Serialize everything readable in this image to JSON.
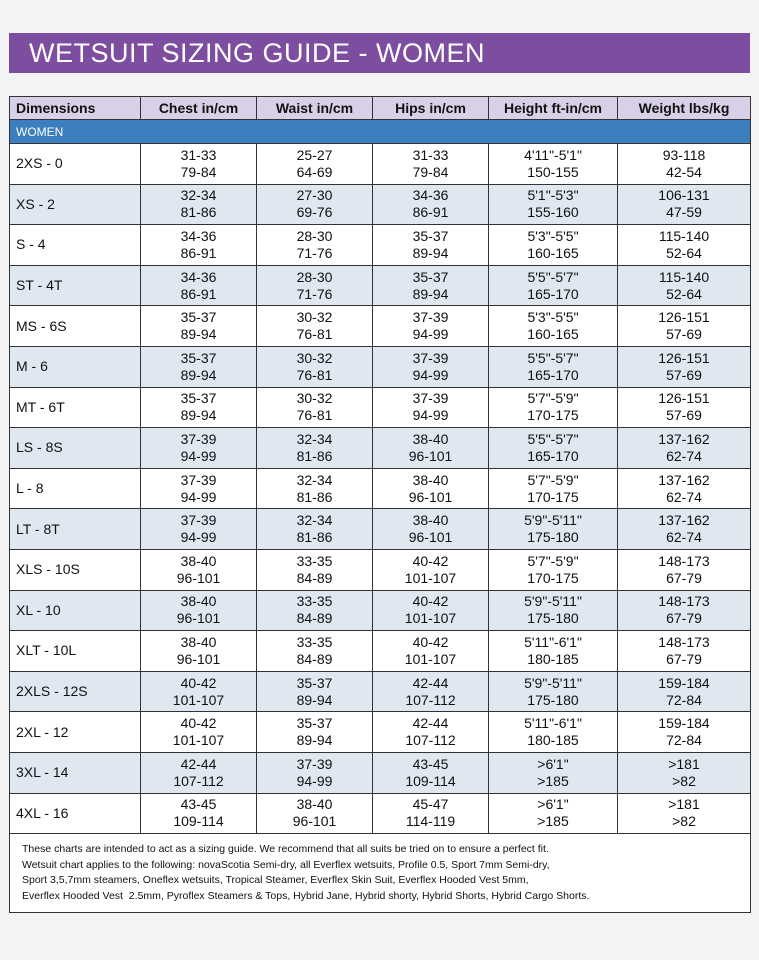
{
  "header": {
    "title": "WETSUIT SIZING GUIDE - WOMEN"
  },
  "table": {
    "columns": [
      "Dimensions",
      "Chest in/cm",
      "Waist in/cm",
      "Hips in/cm",
      "Height ft-in/cm",
      "Weight lbs/kg"
    ],
    "section": "WOMEN",
    "rows": [
      {
        "size": "2XS - 0",
        "cells": [
          [
            "31-33",
            "79-84"
          ],
          [
            "25-27",
            "64-69"
          ],
          [
            "31-33",
            "79-84"
          ],
          [
            "4'11\"-5'1\"",
            "150-155"
          ],
          [
            "93-118",
            "42-54"
          ]
        ]
      },
      {
        "size": "XS - 2",
        "cells": [
          [
            "32-34",
            "81-86"
          ],
          [
            "27-30",
            "69-76"
          ],
          [
            "34-36",
            "86-91"
          ],
          [
            "5'1\"-5'3\"",
            "155-160"
          ],
          [
            "106-131",
            "47-59"
          ]
        ]
      },
      {
        "size": "S - 4",
        "cells": [
          [
            "34-36",
            "86-91"
          ],
          [
            "28-30",
            "71-76"
          ],
          [
            "35-37",
            "89-94"
          ],
          [
            "5'3\"-5'5\"",
            "160-165"
          ],
          [
            "115-140",
            "52-64"
          ]
        ]
      },
      {
        "size": "ST - 4T",
        "cells": [
          [
            "34-36",
            "86-91"
          ],
          [
            "28-30",
            "71-76"
          ],
          [
            "35-37",
            "89-94"
          ],
          [
            "5'5\"-5'7\"",
            "165-170"
          ],
          [
            "115-140",
            "52-64"
          ]
        ]
      },
      {
        "size": "MS - 6S",
        "cells": [
          [
            "35-37",
            "89-94"
          ],
          [
            "30-32",
            "76-81"
          ],
          [
            "37-39",
            "94-99"
          ],
          [
            "5'3\"-5'5\"",
            "160-165"
          ],
          [
            "126-151",
            "57-69"
          ]
        ]
      },
      {
        "size": "M - 6",
        "cells": [
          [
            "35-37",
            "89-94"
          ],
          [
            "30-32",
            "76-81"
          ],
          [
            "37-39",
            "94-99"
          ],
          [
            "5'5\"-5'7\"",
            "165-170"
          ],
          [
            "126-151",
            "57-69"
          ]
        ]
      },
      {
        "size": "MT - 6T",
        "cells": [
          [
            "35-37",
            "89-94"
          ],
          [
            "30-32",
            "76-81"
          ],
          [
            "37-39",
            "94-99"
          ],
          [
            "5'7\"-5'9\"",
            "170-175"
          ],
          [
            "126-151",
            "57-69"
          ]
        ]
      },
      {
        "size": "LS - 8S",
        "cells": [
          [
            "37-39",
            "94-99"
          ],
          [
            "32-34",
            "81-86"
          ],
          [
            "38-40",
            "96-101"
          ],
          [
            "5'5\"-5'7\"",
            "165-170"
          ],
          [
            "137-162",
            "62-74"
          ]
        ]
      },
      {
        "size": "L - 8",
        "cells": [
          [
            "37-39",
            "94-99"
          ],
          [
            "32-34",
            "81-86"
          ],
          [
            "38-40",
            "96-101"
          ],
          [
            "5'7\"-5'9\"",
            "170-175"
          ],
          [
            "137-162",
            "62-74"
          ]
        ]
      },
      {
        "size": "LT - 8T",
        "cells": [
          [
            "37-39",
            "94-99"
          ],
          [
            "32-34",
            "81-86"
          ],
          [
            "38-40",
            "96-101"
          ],
          [
            "5'9\"-5'11\"",
            "175-180"
          ],
          [
            "137-162",
            "62-74"
          ]
        ]
      },
      {
        "size": "XLS - 10S",
        "cells": [
          [
            "38-40",
            "96-101"
          ],
          [
            "33-35",
            "84-89"
          ],
          [
            "40-42",
            "101-107"
          ],
          [
            "5'7\"-5'9\"",
            "170-175"
          ],
          [
            "148-173",
            "67-79"
          ]
        ]
      },
      {
        "size": "XL - 10",
        "cells": [
          [
            "38-40",
            "96-101"
          ],
          [
            "33-35",
            "84-89"
          ],
          [
            "40-42",
            "101-107"
          ],
          [
            "5'9\"-5'11\"",
            "175-180"
          ],
          [
            "148-173",
            "67-79"
          ]
        ]
      },
      {
        "size": "XLT - 10L",
        "cells": [
          [
            "38-40",
            "96-101"
          ],
          [
            "33-35",
            "84-89"
          ],
          [
            "40-42",
            "101-107"
          ],
          [
            "5'11\"-6'1\"",
            "180-185"
          ],
          [
            "148-173",
            "67-79"
          ]
        ]
      },
      {
        "size": "2XLS - 12S",
        "cells": [
          [
            "40-42",
            "101-107"
          ],
          [
            "35-37",
            "89-94"
          ],
          [
            "42-44",
            "107-112"
          ],
          [
            "5'9\"-5'11\"",
            "175-180"
          ],
          [
            "159-184",
            "72-84"
          ]
        ]
      },
      {
        "size": "2XL - 12",
        "cells": [
          [
            "40-42",
            "101-107"
          ],
          [
            "35-37",
            "89-94"
          ],
          [
            "42-44",
            "107-112"
          ],
          [
            "5'11\"-6'1\"",
            "180-185"
          ],
          [
            "159-184",
            "72-84"
          ]
        ]
      },
      {
        "size": "3XL - 14",
        "cells": [
          [
            "42-44",
            "107-112"
          ],
          [
            "37-39",
            "94-99"
          ],
          [
            "43-45",
            "109-114"
          ],
          [
            ">6'1\"",
            ">185"
          ],
          [
            ">181",
            ">82"
          ]
        ]
      },
      {
        "size": "4XL - 16",
        "cells": [
          [
            "43-45",
            "109-114"
          ],
          [
            "38-40",
            "96-101"
          ],
          [
            "45-47",
            "114-119"
          ],
          [
            ">6'1\"",
            ">185"
          ],
          [
            ">181",
            ">82"
          ]
        ]
      }
    ],
    "notes": [
      "These charts are intended to act as a sizing guide. We recommend that all suits be tried on to ensure a perfect fit.",
      "Wetsuit chart applies to the following: novaScotia Semi-dry, all Everflex wetsuits, Profile 0.5, Sport 7mm Semi-dry,",
      "Sport 3,5,7mm steamers, Oneflex wetsuits, Tropical Steamer, Everflex Skin Suit, Everflex Hooded Vest 5mm,",
      "Everflex Hooded Vest  2.5mm, Pyroflex Steamers & Tops, Hybrid Jane, Hybrid shorty, Hybrid Shorts, Hybrid Cargo Shorts."
    ]
  }
}
